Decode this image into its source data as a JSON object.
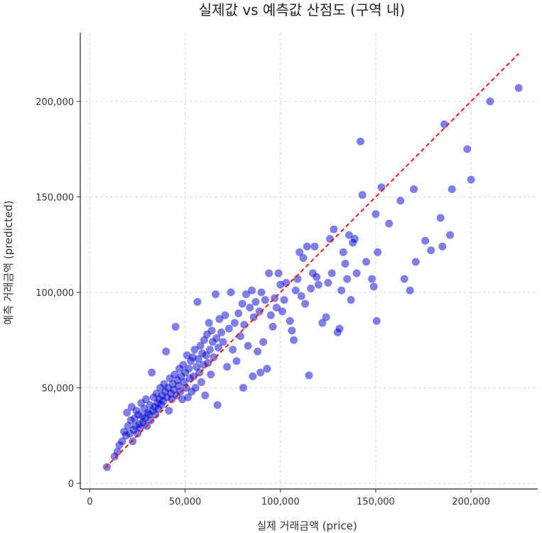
{
  "chart_data": {
    "type": "scatter",
    "title": "실제값 vs 예측값 산점도 (구역 내)",
    "xlabel": "실제 거래금액 (price)",
    "ylabel": "예측 거래금액 (predicted)",
    "xlim": [
      -5000,
      235000
    ],
    "ylim": [
      -3000,
      236000
    ],
    "xticks": [
      0,
      50000,
      100000,
      150000,
      200000
    ],
    "yticks": [
      0,
      50000,
      100000,
      150000,
      200000
    ],
    "xtick_labels": [
      "0",
      "50,000",
      "100,000",
      "150,000",
      "200,000"
    ],
    "ytick_labels": [
      "0",
      "50,000",
      "100,000",
      "150,000",
      "200,000"
    ],
    "grid": true,
    "point_color": "#0000cc",
    "point_opacity": 0.5,
    "reference_line": {
      "style": "dashed",
      "color": "#ff0000",
      "x": [
        8000,
        225000
      ],
      "y": [
        8000,
        225000
      ]
    },
    "points": [
      [
        9000,
        8500
      ],
      [
        13000,
        14000
      ],
      [
        14500,
        16500
      ],
      [
        15500,
        20000
      ],
      [
        17000,
        22000
      ],
      [
        18000,
        27000
      ],
      [
        19000,
        25000
      ],
      [
        19500,
        37000
      ],
      [
        20000,
        30000
      ],
      [
        21000,
        26000
      ],
      [
        21500,
        33000
      ],
      [
        22000,
        40000
      ],
      [
        22500,
        22000
      ],
      [
        23000,
        28000
      ],
      [
        23500,
        34000
      ],
      [
        24000,
        30000
      ],
      [
        24500,
        38000
      ],
      [
        25000,
        26000
      ],
      [
        25500,
        36000
      ],
      [
        26000,
        31000
      ],
      [
        26500,
        29000
      ],
      [
        27000,
        42000
      ],
      [
        27500,
        35000
      ],
      [
        28000,
        32000
      ],
      [
        28500,
        39000
      ],
      [
        29000,
        34000
      ],
      [
        29500,
        44000
      ],
      [
        30000,
        30000
      ],
      [
        30500,
        37000
      ],
      [
        31000,
        36000
      ],
      [
        31500,
        41000
      ],
      [
        32000,
        33000
      ],
      [
        32500,
        58000
      ],
      [
        33000,
        38000
      ],
      [
        33500,
        45000
      ],
      [
        34000,
        40000
      ],
      [
        34500,
        36000
      ],
      [
        35000,
        47000
      ],
      [
        35500,
        42000
      ],
      [
        36000,
        39000
      ],
      [
        36500,
        44000
      ],
      [
        37000,
        50000
      ],
      [
        37500,
        41000
      ],
      [
        38000,
        46000
      ],
      [
        38500,
        43000
      ],
      [
        39000,
        52000
      ],
      [
        39500,
        48000
      ],
      [
        40000,
        69000
      ],
      [
        40500,
        45000
      ],
      [
        41000,
        50000
      ],
      [
        41500,
        38000
      ],
      [
        42000,
        55000
      ],
      [
        42500,
        47000
      ],
      [
        43000,
        44000
      ],
      [
        43500,
        52000
      ],
      [
        44000,
        49000
      ],
      [
        44500,
        57000
      ],
      [
        45000,
        82000
      ],
      [
        45500,
        46000
      ],
      [
        46000,
        54000
      ],
      [
        46500,
        51000
      ],
      [
        47000,
        60000
      ],
      [
        47500,
        48000
      ],
      [
        48000,
        56000
      ],
      [
        48500,
        44000
      ],
      [
        49000,
        62000
      ],
      [
        49500,
        53000
      ],
      [
        50000,
        58000
      ],
      [
        50500,
        50000
      ],
      [
        51000,
        67000
      ],
      [
        51500,
        45000
      ],
      [
        52000,
        60000
      ],
      [
        52500,
        55000
      ],
      [
        53000,
        64000
      ],
      [
        53500,
        48000
      ],
      [
        54000,
        66000
      ],
      [
        54500,
        56000
      ],
      [
        55000,
        70000
      ],
      [
        55500,
        50000
      ],
      [
        56000,
        61000
      ],
      [
        56500,
        95000
      ],
      [
        57000,
        65000
      ],
      [
        57500,
        58000
      ],
      [
        58000,
        72000
      ],
      [
        58500,
        53000
      ],
      [
        59000,
        68000
      ],
      [
        59500,
        62000
      ],
      [
        60000,
        75000
      ],
      [
        60500,
        46000
      ],
      [
        61000,
        67000
      ],
      [
        61500,
        78000
      ],
      [
        62000,
        63000
      ],
      [
        62500,
        84000
      ],
      [
        63000,
        70000
      ],
      [
        63500,
        57000
      ],
      [
        64000,
        80000
      ],
      [
        64500,
        74000
      ],
      [
        65000,
        66000
      ],
      [
        66000,
        99000
      ],
      [
        66500,
        76000
      ],
      [
        67000,
        41000
      ],
      [
        67500,
        71000
      ],
      [
        68000,
        86000
      ],
      [
        69000,
        79000
      ],
      [
        70000,
        74000
      ],
      [
        71000,
        88000
      ],
      [
        72000,
        61000
      ],
      [
        73000,
        81000
      ],
      [
        74000,
        100000
      ],
      [
        75000,
        70000
      ],
      [
        76000,
        84000
      ],
      [
        77000,
        64000
      ],
      [
        78000,
        89000
      ],
      [
        79000,
        77000
      ],
      [
        80000,
        94000
      ],
      [
        80500,
        50000
      ],
      [
        81000,
        83000
      ],
      [
        82000,
        99000
      ],
      [
        83000,
        72000
      ],
      [
        84000,
        92000
      ],
      [
        85000,
        101000
      ],
      [
        85500,
        56000
      ],
      [
        86000,
        87000
      ],
      [
        87000,
        95000
      ],
      [
        88000,
        69000
      ],
      [
        89000,
        90000
      ],
      [
        89500,
        58000
      ],
      [
        90000,
        100000
      ],
      [
        91000,
        74000
      ],
      [
        92000,
        96000
      ],
      [
        93000,
        60000
      ],
      [
        94000,
        110000
      ],
      [
        95000,
        88000
      ],
      [
        96000,
        82000
      ],
      [
        97000,
        97000
      ],
      [
        98000,
        92000
      ],
      [
        99000,
        110000
      ],
      [
        100000,
        104000
      ],
      [
        101000,
        90000
      ],
      [
        102000,
        96000
      ],
      [
        103000,
        105000
      ],
      [
        105000,
        85000
      ],
      [
        106000,
        80000
      ],
      [
        107000,
        75000
      ],
      [
        108000,
        101000
      ],
      [
        109000,
        107000
      ],
      [
        110000,
        121000
      ],
      [
        111000,
        98000
      ],
      [
        112000,
        118000
      ],
      [
        113000,
        94000
      ],
      [
        114000,
        124000
      ],
      [
        115000,
        56500
      ],
      [
        116000,
        102000
      ],
      [
        117000,
        110000
      ],
      [
        118000,
        124000
      ],
      [
        119000,
        108000
      ],
      [
        120000,
        104000
      ],
      [
        122000,
        84000
      ],
      [
        124000,
        87000
      ],
      [
        125000,
        105000
      ],
      [
        126000,
        128000
      ],
      [
        127000,
        110000
      ],
      [
        128000,
        133000
      ],
      [
        130000,
        79000
      ],
      [
        131000,
        81000
      ],
      [
        132000,
        101000
      ],
      [
        133000,
        121000
      ],
      [
        134000,
        115000
      ],
      [
        135000,
        107000
      ],
      [
        136000,
        130000
      ],
      [
        137000,
        96000
      ],
      [
        138000,
        126000
      ],
      [
        139000,
        128000
      ],
      [
        140000,
        110000
      ],
      [
        142000,
        179000
      ],
      [
        143000,
        151000
      ],
      [
        145000,
        116000
      ],
      [
        148000,
        107000
      ],
      [
        149000,
        103000
      ],
      [
        150000,
        141000
      ],
      [
        150500,
        85000
      ],
      [
        151000,
        121000
      ],
      [
        153000,
        155000
      ],
      [
        157000,
        136000
      ],
      [
        163000,
        148000
      ],
      [
        165000,
        107000
      ],
      [
        168000,
        101000
      ],
      [
        170000,
        154000
      ],
      [
        171000,
        116000
      ],
      [
        176000,
        127000
      ],
      [
        179000,
        122000
      ],
      [
        184000,
        139000
      ],
      [
        185000,
        124000
      ],
      [
        186000,
        188000
      ],
      [
        189000,
        130000
      ],
      [
        190000,
        154000
      ],
      [
        198000,
        175000
      ],
      [
        200000,
        159000
      ],
      [
        210000,
        200000
      ],
      [
        225000,
        207000
      ]
    ]
  }
}
